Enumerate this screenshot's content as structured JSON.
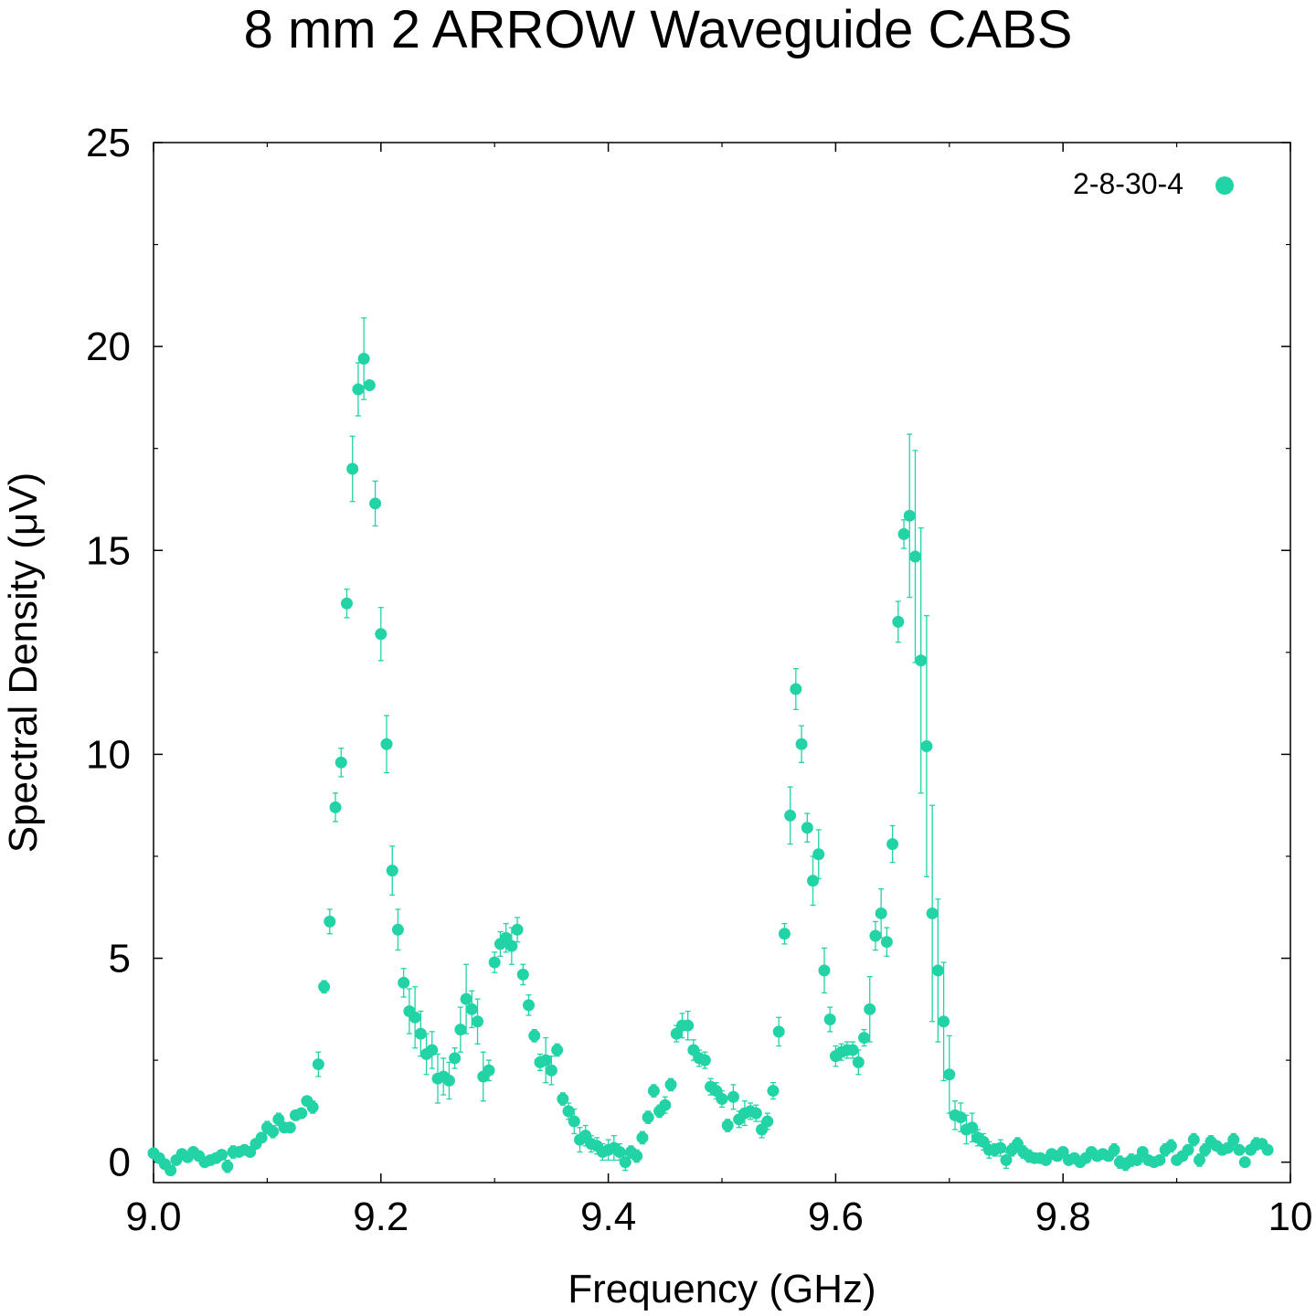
{
  "chart_data": {
    "type": "scatter",
    "title": "8 mm 2 ARROW Waveguide CABS",
    "xlabel": "Frequency (GHz)",
    "ylabel": "Spectral Density (μV)",
    "xlim": [
      9.0,
      10.0
    ],
    "ylim": [
      -0.5,
      25
    ],
    "xticks": [
      9.0,
      9.2,
      9.4,
      9.6,
      9.8,
      10.0
    ],
    "xtick_labels": [
      "9.0",
      "9.2",
      "9.4",
      "9.6",
      "9.8",
      "10"
    ],
    "yticks": [
      0,
      5,
      10,
      15,
      20,
      25
    ],
    "ytick_labels": [
      "0",
      "5",
      "10",
      "15",
      "20",
      "25"
    ],
    "grid": false,
    "legend_position": "top-right",
    "series": [
      {
        "name": "2-8-30-4",
        "color": "#22d3a6",
        "points": [
          [
            9.0,
            0.22,
            0.1
          ],
          [
            9.005,
            0.1,
            0.1
          ],
          [
            9.01,
            -0.05,
            0.1
          ],
          [
            9.015,
            -0.2,
            0.1
          ],
          [
            9.02,
            0.05,
            0.1
          ],
          [
            9.025,
            0.2,
            0.1
          ],
          [
            9.03,
            0.12,
            0.1
          ],
          [
            9.035,
            0.25,
            0.1
          ],
          [
            9.04,
            0.15,
            0.1
          ],
          [
            9.045,
            0.0,
            0.1
          ],
          [
            9.05,
            0.05,
            0.1
          ],
          [
            9.055,
            0.1,
            0.1
          ],
          [
            9.06,
            0.18,
            0.1
          ],
          [
            9.065,
            -0.1,
            0.15
          ],
          [
            9.07,
            0.25,
            0.15
          ],
          [
            9.075,
            0.25,
            0.1
          ],
          [
            9.08,
            0.3,
            0.1
          ],
          [
            9.085,
            0.25,
            0.1
          ],
          [
            9.09,
            0.45,
            0.1
          ],
          [
            9.095,
            0.6,
            0.1
          ],
          [
            9.1,
            0.85,
            0.15
          ],
          [
            9.105,
            0.75,
            0.15
          ],
          [
            9.11,
            1.05,
            0.15
          ],
          [
            9.115,
            0.85,
            0.1
          ],
          [
            9.12,
            0.85,
            0.1
          ],
          [
            9.125,
            1.15,
            0.1
          ],
          [
            9.13,
            1.2,
            0.1
          ],
          [
            9.135,
            1.5,
            0.1
          ],
          [
            9.14,
            1.35,
            0.15
          ],
          [
            9.145,
            2.4,
            0.3
          ],
          [
            9.15,
            4.3,
            0.15
          ],
          [
            9.155,
            5.9,
            0.3
          ],
          [
            9.16,
            8.7,
            0.35
          ],
          [
            9.165,
            9.8,
            0.35
          ],
          [
            9.17,
            13.7,
            0.35
          ],
          [
            9.175,
            17.0,
            0.8
          ],
          [
            9.18,
            18.95,
            0.65
          ],
          [
            9.185,
            19.7,
            1.0
          ],
          [
            9.19,
            19.05,
            0.0
          ],
          [
            9.195,
            16.15,
            0.55
          ],
          [
            9.2,
            12.95,
            0.65
          ],
          [
            9.205,
            10.25,
            0.7
          ],
          [
            9.21,
            7.15,
            0.6
          ],
          [
            9.215,
            5.7,
            0.5
          ],
          [
            9.22,
            4.4,
            0.35
          ],
          [
            9.225,
            3.7,
            0.55
          ],
          [
            9.23,
            3.55,
            0.75
          ],
          [
            9.235,
            3.15,
            0.55
          ],
          [
            9.24,
            2.65,
            0.5
          ],
          [
            9.245,
            2.75,
            0.45
          ],
          [
            9.25,
            2.05,
            0.6
          ],
          [
            9.255,
            2.1,
            0.45
          ],
          [
            9.26,
            2.0,
            0.45
          ],
          [
            9.265,
            2.55,
            0.25
          ],
          [
            9.27,
            3.25,
            0.55
          ],
          [
            9.275,
            4.0,
            0.85
          ],
          [
            9.28,
            3.75,
            0.45
          ],
          [
            9.285,
            3.45,
            0.55
          ],
          [
            9.29,
            2.1,
            0.6
          ],
          [
            9.295,
            2.25,
            0.25
          ],
          [
            9.3,
            4.9,
            0.25
          ],
          [
            9.305,
            5.35,
            0.3
          ],
          [
            9.31,
            5.5,
            0.35
          ],
          [
            9.315,
            5.3,
            0.45
          ],
          [
            9.32,
            5.7,
            0.3
          ],
          [
            9.325,
            4.6,
            0.25
          ],
          [
            9.33,
            3.85,
            0.25
          ],
          [
            9.335,
            3.1,
            0.15
          ],
          [
            9.34,
            2.45,
            0.2
          ],
          [
            9.345,
            2.5,
            0.55
          ],
          [
            9.35,
            2.25,
            0.35
          ],
          [
            9.355,
            2.75,
            0.15
          ],
          [
            9.36,
            1.55,
            0.15
          ],
          [
            9.365,
            1.25,
            0.2
          ],
          [
            9.37,
            1.0,
            0.3
          ],
          [
            9.375,
            0.55,
            0.3
          ],
          [
            9.38,
            0.65,
            0.25
          ],
          [
            9.385,
            0.45,
            0.2
          ],
          [
            9.39,
            0.4,
            0.2
          ],
          [
            9.395,
            0.25,
            0.2
          ],
          [
            9.4,
            0.3,
            0.25
          ],
          [
            9.405,
            0.35,
            0.3
          ],
          [
            9.41,
            0.25,
            0.2
          ],
          [
            9.415,
            0.0,
            0.2
          ],
          [
            9.42,
            0.25,
            0.15
          ],
          [
            9.425,
            0.15,
            0.15
          ],
          [
            9.43,
            0.6,
            0.15
          ],
          [
            9.435,
            1.1,
            0.15
          ],
          [
            9.44,
            1.75,
            0.15
          ],
          [
            9.445,
            1.25,
            0.15
          ],
          [
            9.45,
            1.4,
            0.2
          ],
          [
            9.455,
            1.9,
            0.15
          ],
          [
            9.46,
            3.15,
            0.2
          ],
          [
            9.465,
            3.35,
            0.3
          ],
          [
            9.47,
            3.35,
            0.35
          ],
          [
            9.475,
            2.75,
            0.25
          ],
          [
            9.48,
            2.55,
            0.2
          ],
          [
            9.485,
            2.5,
            0.2
          ],
          [
            9.49,
            1.85,
            0.2
          ],
          [
            9.495,
            1.75,
            0.2
          ],
          [
            9.5,
            1.55,
            0.2
          ],
          [
            9.505,
            0.9,
            0.15
          ],
          [
            9.51,
            1.6,
            0.3
          ],
          [
            9.515,
            1.05,
            0.2
          ],
          [
            9.52,
            1.2,
            0.3
          ],
          [
            9.525,
            1.25,
            0.2
          ],
          [
            9.53,
            1.2,
            0.2
          ],
          [
            9.535,
            0.8,
            0.2
          ],
          [
            9.54,
            1.0,
            0.2
          ],
          [
            9.545,
            1.75,
            0.2
          ],
          [
            9.55,
            3.2,
            0.35
          ],
          [
            9.555,
            5.6,
            0.25
          ],
          [
            9.56,
            8.5,
            0.7
          ],
          [
            9.565,
            11.6,
            0.5
          ],
          [
            9.57,
            10.25,
            0.45
          ],
          [
            9.575,
            8.2,
            0.35
          ],
          [
            9.58,
            6.9,
            0.6
          ],
          [
            9.585,
            7.55,
            0.6
          ],
          [
            9.59,
            4.7,
            0.55
          ],
          [
            9.595,
            3.5,
            0.3
          ],
          [
            9.6,
            2.6,
            0.25
          ],
          [
            9.605,
            2.7,
            0.2
          ],
          [
            9.61,
            2.75,
            0.2
          ],
          [
            9.615,
            2.75,
            0.2
          ],
          [
            9.62,
            2.45,
            0.3
          ],
          [
            9.625,
            3.05,
            0.2
          ],
          [
            9.63,
            3.75,
            0.8
          ],
          [
            9.635,
            5.55,
            0.35
          ],
          [
            9.64,
            6.1,
            0.6
          ],
          [
            9.645,
            5.4,
            0.35
          ],
          [
            9.65,
            7.8,
            0.45
          ],
          [
            9.655,
            13.25,
            0.5
          ],
          [
            9.66,
            15.4,
            0.35
          ],
          [
            9.665,
            15.85,
            2.0
          ],
          [
            9.67,
            14.85,
            2.6
          ],
          [
            9.675,
            12.3,
            3.25
          ],
          [
            9.68,
            10.2,
            3.2
          ],
          [
            9.685,
            6.1,
            2.65
          ],
          [
            9.69,
            4.7,
            1.75
          ],
          [
            9.695,
            3.45,
            1.45
          ],
          [
            9.7,
            2.15,
            0.95
          ],
          [
            9.705,
            1.15,
            0.35
          ],
          [
            9.71,
            1.1,
            0.35
          ],
          [
            9.715,
            0.8,
            0.35
          ],
          [
            9.72,
            0.85,
            0.35
          ],
          [
            9.725,
            0.6,
            0.2
          ],
          [
            9.73,
            0.5,
            0.2
          ],
          [
            9.735,
            0.3,
            0.2
          ],
          [
            9.74,
            0.3,
            0.15
          ],
          [
            9.745,
            0.35,
            0.2
          ],
          [
            9.75,
            0.05,
            0.2
          ],
          [
            9.755,
            0.3,
            0.15
          ],
          [
            9.76,
            0.45,
            0.15
          ],
          [
            9.765,
            0.25,
            0.15
          ],
          [
            9.77,
            0.15,
            0.15
          ],
          [
            9.775,
            0.1,
            0.1
          ],
          [
            9.78,
            0.1,
            0.1
          ],
          [
            9.785,
            0.05,
            0.1
          ],
          [
            9.79,
            0.2,
            0.1
          ],
          [
            9.795,
            0.15,
            0.1
          ],
          [
            9.8,
            0.25,
            0.1
          ],
          [
            9.805,
            0.05,
            0.1
          ],
          [
            9.81,
            0.1,
            0.1
          ],
          [
            9.815,
            0.0,
            0.1
          ],
          [
            9.82,
            0.1,
            0.1
          ],
          [
            9.825,
            0.25,
            0.1
          ],
          [
            9.83,
            0.15,
            0.1
          ],
          [
            9.835,
            0.2,
            0.1
          ],
          [
            9.84,
            0.15,
            0.1
          ],
          [
            9.845,
            0.3,
            0.15
          ],
          [
            9.85,
            0.0,
            0.15
          ],
          [
            9.855,
            -0.05,
            0.15
          ],
          [
            9.86,
            0.05,
            0.15
          ],
          [
            9.865,
            0.05,
            0.1
          ],
          [
            9.87,
            0.25,
            0.1
          ],
          [
            9.875,
            0.05,
            0.1
          ],
          [
            9.88,
            0.0,
            0.1
          ],
          [
            9.885,
            0.05,
            0.1
          ],
          [
            9.89,
            0.3,
            0.15
          ],
          [
            9.895,
            0.4,
            0.15
          ],
          [
            9.9,
            0.05,
            0.1
          ],
          [
            9.905,
            0.15,
            0.1
          ],
          [
            9.91,
            0.3,
            0.1
          ],
          [
            9.915,
            0.55,
            0.15
          ],
          [
            9.92,
            0.05,
            0.15
          ],
          [
            9.925,
            0.3,
            0.15
          ],
          [
            9.93,
            0.5,
            0.15
          ],
          [
            9.935,
            0.4,
            0.1
          ],
          [
            9.94,
            0.3,
            0.1
          ],
          [
            9.945,
            0.35,
            0.1
          ],
          [
            9.95,
            0.55,
            0.15
          ],
          [
            9.955,
            0.3,
            0.1
          ],
          [
            9.96,
            0.0,
            0.1
          ],
          [
            9.965,
            0.3,
            0.1
          ],
          [
            9.97,
            0.45,
            0.15
          ],
          [
            9.975,
            0.45,
            0.1
          ],
          [
            9.98,
            0.3,
            0.1
          ]
        ]
      }
    ]
  }
}
